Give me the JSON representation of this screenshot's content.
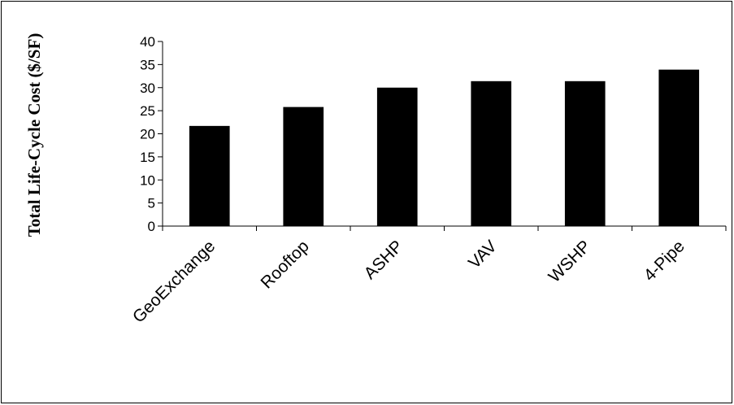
{
  "chart_data": {
    "type": "bar",
    "title": "",
    "xlabel": "",
    "ylabel": "Total Life-Cycle Cost ($/SF)",
    "categories": [
      "GeoExchange",
      "Rooftop",
      "ASHP",
      "VAV",
      "WSHP",
      "4-Pipe"
    ],
    "values": [
      21.7,
      25.8,
      30.0,
      31.4,
      31.4,
      33.9
    ],
    "ylim": [
      0,
      40
    ],
    "yticks": [
      0,
      5,
      10,
      15,
      20,
      25,
      30,
      35,
      40
    ],
    "grid": false,
    "legend": "none",
    "bar_color": "#000000"
  }
}
